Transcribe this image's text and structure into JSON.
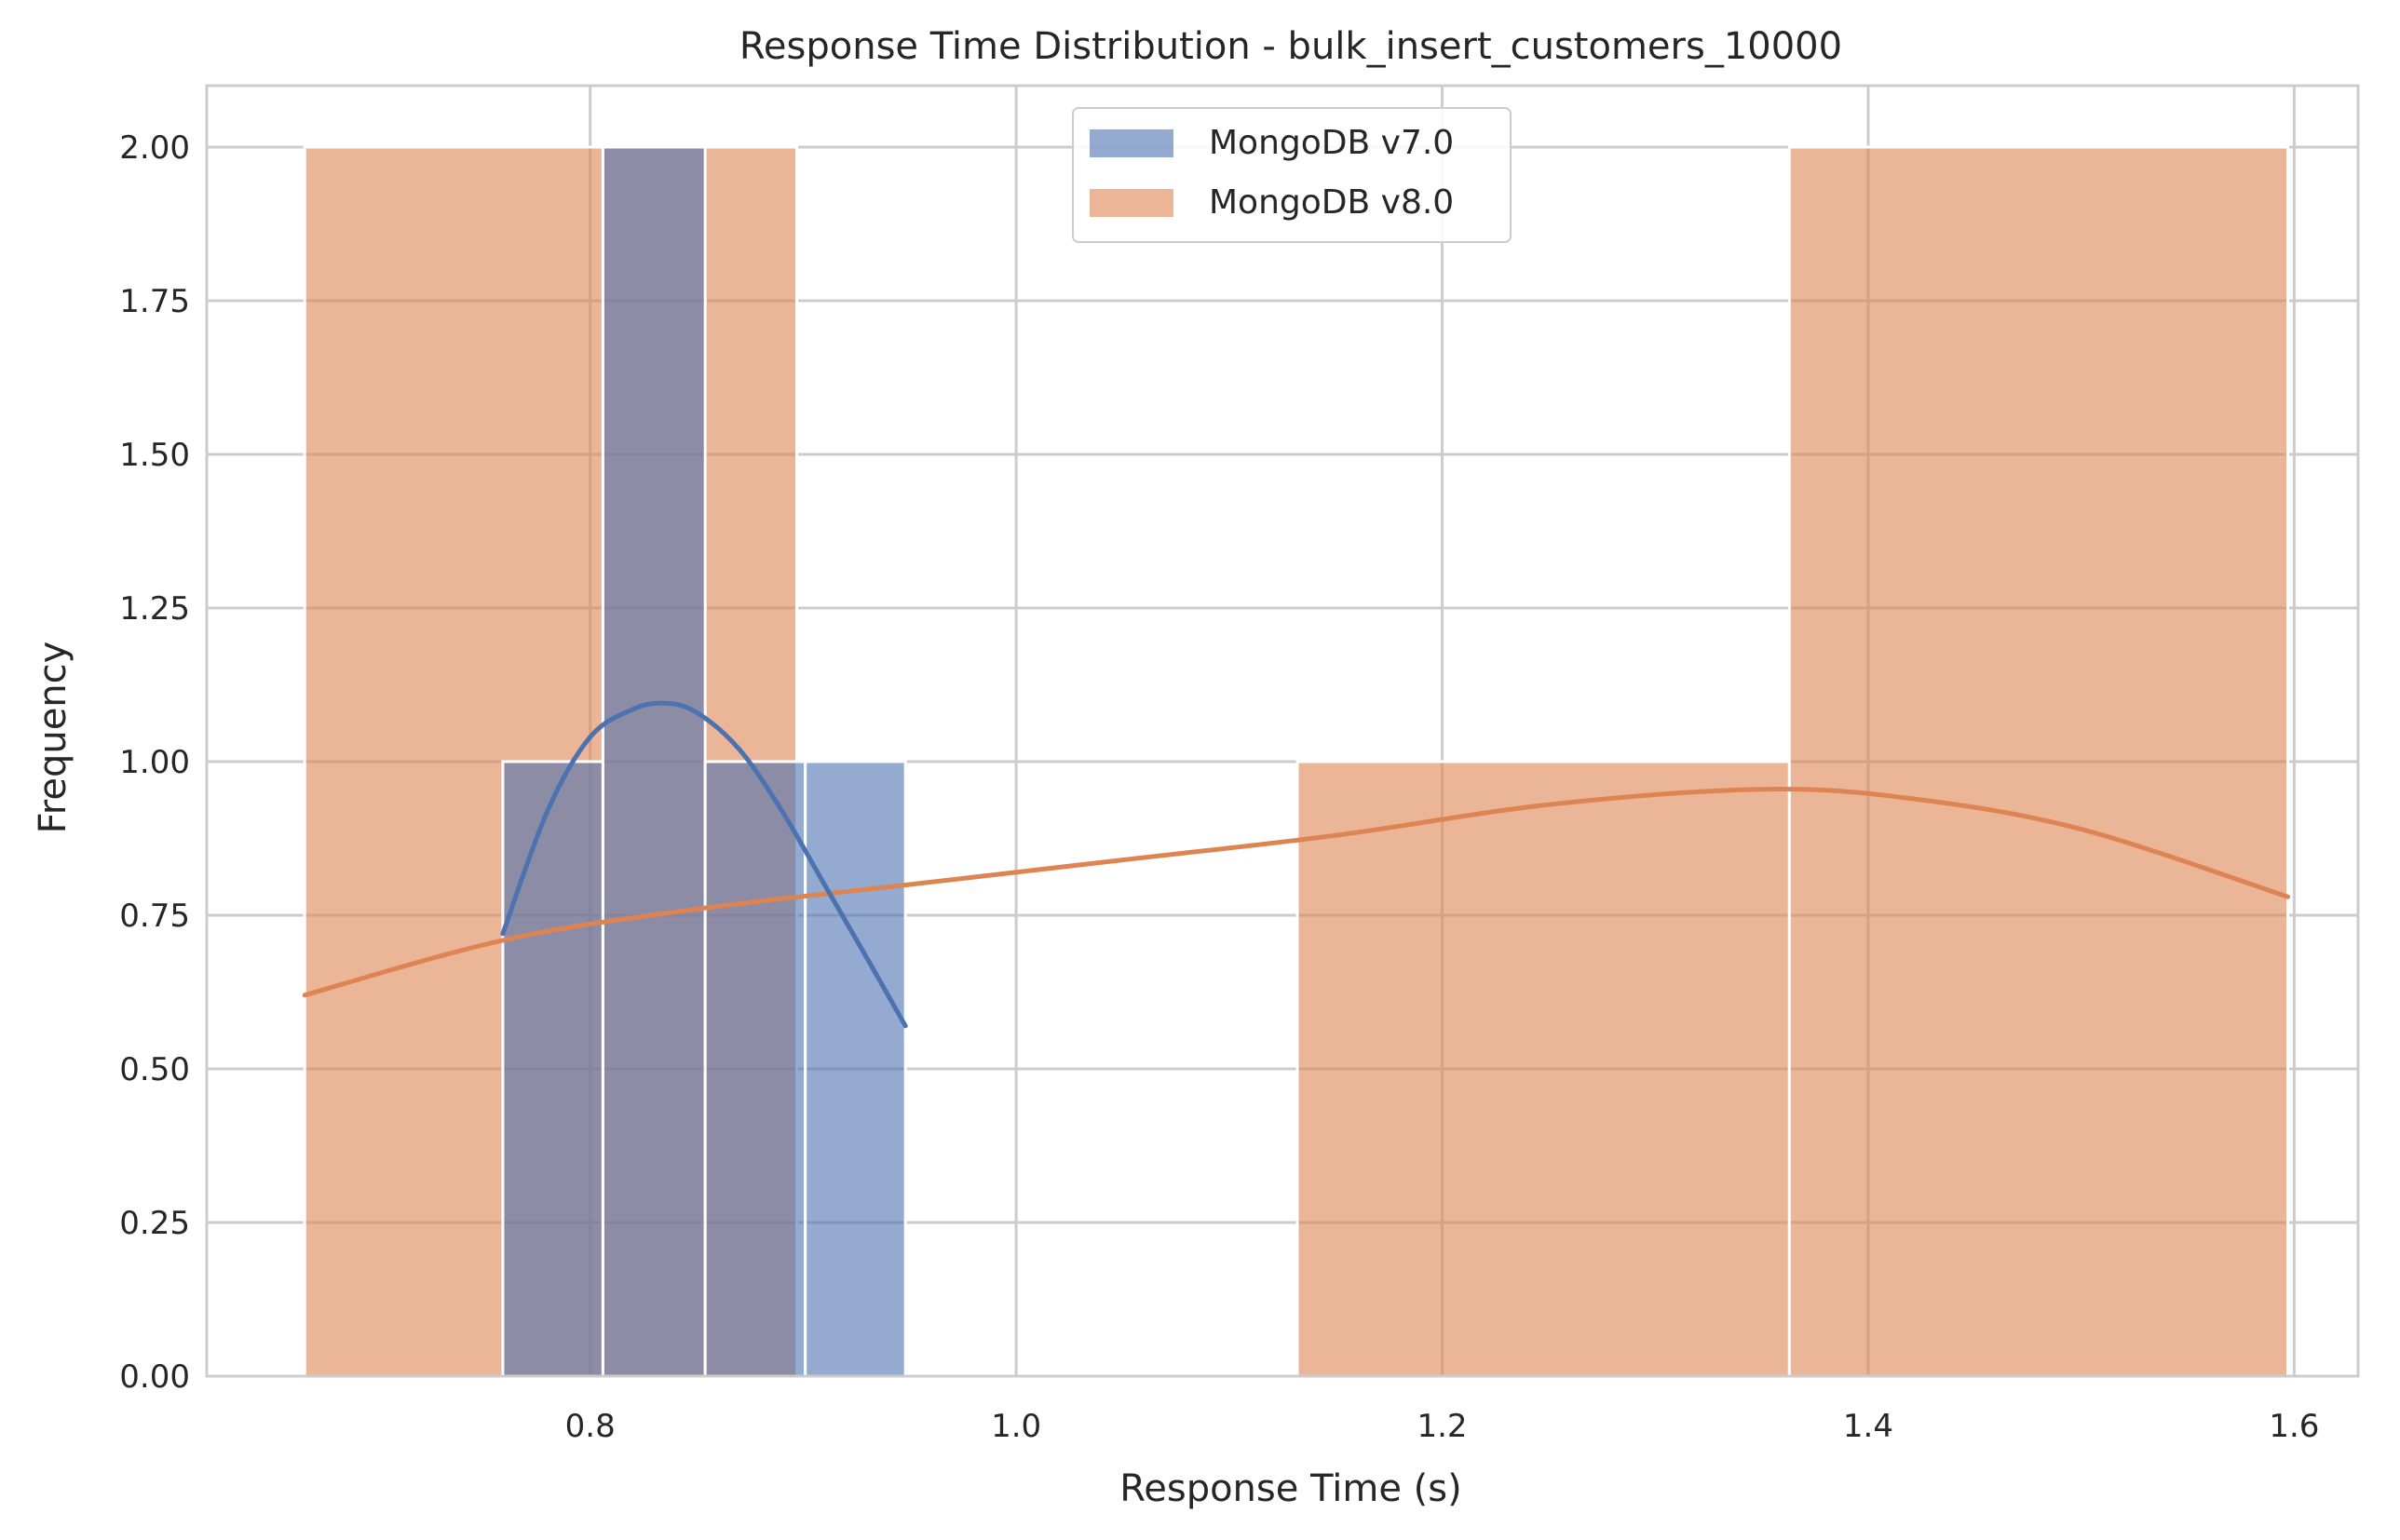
{
  "chart_data": {
    "type": "histogram",
    "title": "Response Time Distribution - bulk_insert_customers_10000",
    "xlabel": "Response Time (s)",
    "ylabel": "Frequency",
    "xlim": [
      0.62,
      1.63
    ],
    "ylim": [
      0,
      2.1
    ],
    "xticks": [
      0.8,
      1.0,
      1.2,
      1.4,
      1.6
    ],
    "xtick_labels": [
      "0.8",
      "1.0",
      "1.2",
      "1.4",
      "1.6"
    ],
    "yticks": [
      0,
      0.25,
      0.5,
      0.75,
      1.0,
      1.25,
      1.5,
      1.75,
      2.0
    ],
    "ytick_labels": [
      "0.00",
      "0.25",
      "0.50",
      "0.75",
      "1.00",
      "1.25",
      "1.50",
      "1.75",
      "2.00"
    ],
    "grid": true,
    "legend_position": "top-center",
    "series": [
      {
        "name": "MongoDB v8.0",
        "color": "#dd8452",
        "bins": [
          {
            "x0": 0.666,
            "x1": 0.897,
            "count": 2
          },
          {
            "x0": 1.132,
            "x1": 1.363,
            "count": 1
          },
          {
            "x0": 1.363,
            "x1": 1.597,
            "count": 2
          }
        ],
        "kde": [
          [
            0.666,
            0.62
          ],
          [
            0.76,
            0.71
          ],
          [
            0.85,
            0.76
          ],
          [
            0.95,
            0.8
          ],
          [
            1.05,
            0.84
          ],
          [
            1.15,
            0.88
          ],
          [
            1.25,
            0.93
          ],
          [
            1.35,
            0.955
          ],
          [
            1.42,
            0.94
          ],
          [
            1.5,
            0.89
          ],
          [
            1.597,
            0.78
          ]
        ]
      },
      {
        "name": "MongoDB v7.0",
        "color": "#4c72b0",
        "bins": [
          {
            "x0": 0.759,
            "x1": 0.806,
            "count": 1
          },
          {
            "x0": 0.806,
            "x1": 0.854,
            "count": 2
          },
          {
            "x0": 0.854,
            "x1": 0.901,
            "count": 1
          },
          {
            "x0": 0.901,
            "x1": 0.948,
            "count": 1
          }
        ],
        "kde": [
          [
            0.759,
            0.72
          ],
          [
            0.78,
            0.92
          ],
          [
            0.8,
            1.04
          ],
          [
            0.82,
            1.085
          ],
          [
            0.835,
            1.095
          ],
          [
            0.85,
            1.08
          ],
          [
            0.87,
            1.02
          ],
          [
            0.89,
            0.92
          ],
          [
            0.91,
            0.8
          ],
          [
            0.93,
            0.68
          ],
          [
            0.948,
            0.57
          ]
        ]
      }
    ],
    "legend_order": [
      "MongoDB v7.0",
      "MongoDB v8.0"
    ]
  }
}
